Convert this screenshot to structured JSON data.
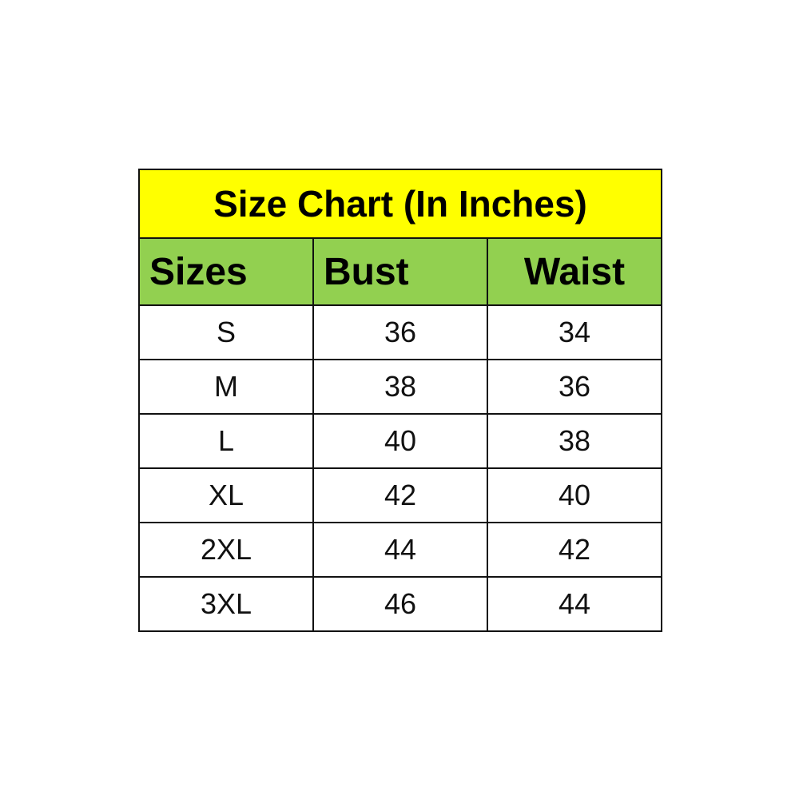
{
  "title": "Size Chart (In Inches)",
  "colors": {
    "title_bg": "#ffff00",
    "header_bg": "#92d050"
  },
  "headers": [
    "Sizes",
    "Bust",
    "Waist"
  ],
  "rows": [
    [
      "S",
      "36",
      "34"
    ],
    [
      "M",
      "38",
      "36"
    ],
    [
      "L",
      "40",
      "38"
    ],
    [
      "XL",
      "42",
      "40"
    ],
    [
      "2XL",
      "44",
      "42"
    ],
    [
      "3XL",
      "46",
      "44"
    ]
  ]
}
